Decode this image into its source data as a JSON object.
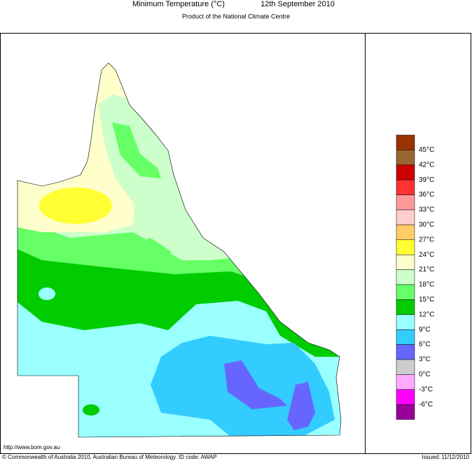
{
  "header": {
    "title": "Minimum Temperature (°C)",
    "date": "12th September 2010",
    "subtitle": "Product of the National Climate Centre"
  },
  "legend": {
    "colors": [
      "#993300",
      "#996633",
      "#cc0000",
      "#ff3333",
      "#ff9999",
      "#ffcccc",
      "#ffcc66",
      "#ffff33",
      "#ffffcc",
      "#ccffcc",
      "#66ff66",
      "#00cc00",
      "#99ffff",
      "#33ccff",
      "#6666ff",
      "#cccccc",
      "#ffaaff",
      "#ff00ff",
      "#990099"
    ],
    "labels": [
      "45°C",
      "42°C",
      "39°C",
      "36°C",
      "33°C",
      "30°C",
      "27°C",
      "24°C",
      "21°C",
      "18°C",
      "15°C",
      "12°C",
      "9°C",
      "6°C",
      "3°C",
      "0°C",
      "-3°C",
      "-6°C"
    ]
  },
  "footer": {
    "url": "http://www.bom.gov.au",
    "copyright": "© Commonwealth of Australia 2010, Australian Bureau of Meteorology",
    "id_code": "ID code: AWAP",
    "issued": "Issued: 11/12/2010"
  }
}
